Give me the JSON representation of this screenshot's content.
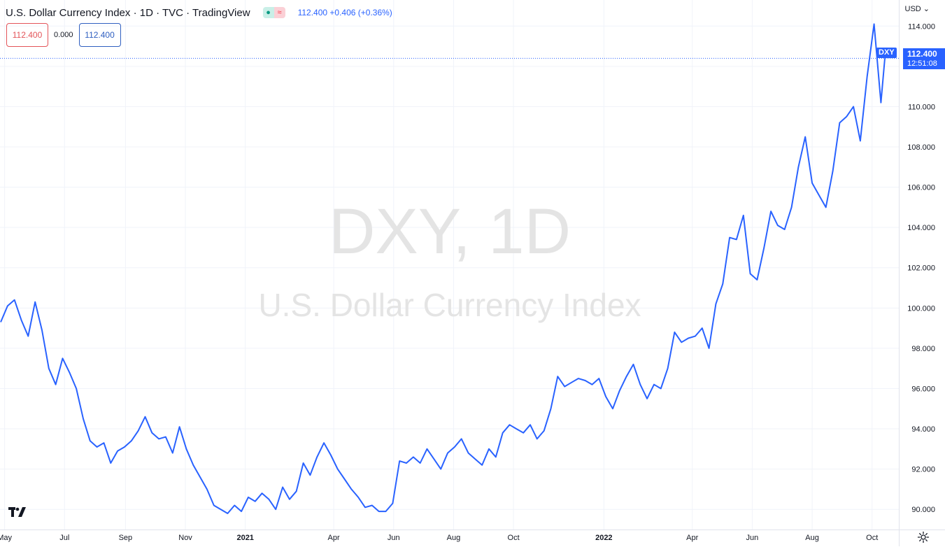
{
  "header": {
    "title": "U.S. Dollar Currency Index · 1D · TVC · TradingView",
    "quote": "112.400 +0.406 (+0.36%)",
    "status_icons": [
      "dot-icon",
      "wave-icon"
    ]
  },
  "legend": {
    "left_value": "112.400",
    "middle_value": "0.000",
    "right_value": "112.400"
  },
  "currency_button": {
    "label": "USD ⌄"
  },
  "last_price": {
    "value": "112.400",
    "countdown": "12:51:08"
  },
  "symbol_badge": "DXY",
  "watermark": {
    "line1": "DXY, 1D",
    "line2": "U.S. Dollar Currency Index"
  },
  "colors": {
    "line": "#2962ff",
    "grid": "#f0f3fa",
    "watermark": "#e4e4e4",
    "accent": "#2962ff"
  },
  "chart_data": {
    "type": "line",
    "title": "U.S. Dollar Currency Index",
    "series": [
      {
        "name": "DXY",
        "x": [
          "2020-04-27",
          "2020-05-04",
          "2020-05-11",
          "2020-05-18",
          "2020-05-25",
          "2020-06-01",
          "2020-06-08",
          "2020-06-15",
          "2020-06-22",
          "2020-06-29",
          "2020-07-06",
          "2020-07-13",
          "2020-07-20",
          "2020-07-27",
          "2020-08-03",
          "2020-08-10",
          "2020-08-17",
          "2020-08-24",
          "2020-08-31",
          "2020-09-07",
          "2020-09-14",
          "2020-09-21",
          "2020-09-28",
          "2020-10-05",
          "2020-10-12",
          "2020-10-19",
          "2020-10-26",
          "2020-11-02",
          "2020-11-09",
          "2020-11-16",
          "2020-11-23",
          "2020-11-30",
          "2020-12-07",
          "2020-12-14",
          "2020-12-21",
          "2020-12-28",
          "2021-01-04",
          "2021-01-11",
          "2021-01-18",
          "2021-01-25",
          "2021-02-01",
          "2021-02-08",
          "2021-02-15",
          "2021-02-22",
          "2021-03-01",
          "2021-03-08",
          "2021-03-15",
          "2021-03-22",
          "2021-03-29",
          "2021-04-05",
          "2021-04-12",
          "2021-04-19",
          "2021-04-26",
          "2021-05-03",
          "2021-05-10",
          "2021-05-17",
          "2021-05-24",
          "2021-05-31",
          "2021-06-07",
          "2021-06-14",
          "2021-06-21",
          "2021-06-28",
          "2021-07-05",
          "2021-07-12",
          "2021-07-19",
          "2021-07-26",
          "2021-08-02",
          "2021-08-09",
          "2021-08-16",
          "2021-08-23",
          "2021-08-30",
          "2021-09-06",
          "2021-09-13",
          "2021-09-20",
          "2021-09-27",
          "2021-10-04",
          "2021-10-11",
          "2021-10-18",
          "2021-10-25",
          "2021-11-01",
          "2021-11-08",
          "2021-11-15",
          "2021-11-22",
          "2021-11-29",
          "2021-12-06",
          "2021-12-13",
          "2021-12-20",
          "2021-12-27",
          "2022-01-03",
          "2022-01-10",
          "2022-01-17",
          "2022-01-24",
          "2022-01-31",
          "2022-02-07",
          "2022-02-14",
          "2022-02-21",
          "2022-02-28",
          "2022-03-07",
          "2022-03-14",
          "2022-03-21",
          "2022-03-28",
          "2022-04-04",
          "2022-04-11",
          "2022-04-18",
          "2022-04-25",
          "2022-05-02",
          "2022-05-09",
          "2022-05-16",
          "2022-05-23",
          "2022-05-30",
          "2022-06-06",
          "2022-06-13",
          "2022-06-20",
          "2022-06-27",
          "2022-07-04",
          "2022-07-11",
          "2022-07-18",
          "2022-07-25",
          "2022-08-01",
          "2022-08-08",
          "2022-08-15",
          "2022-08-22",
          "2022-08-29",
          "2022-09-05",
          "2022-09-12",
          "2022-09-19",
          "2022-09-26",
          "2022-10-03",
          "2022-10-10",
          "2022-10-14"
        ],
        "values": [
          99.3,
          100.1,
          100.4,
          99.4,
          98.6,
          100.3,
          98.9,
          97.0,
          96.2,
          97.5,
          96.8,
          96.0,
          94.5,
          93.4,
          93.1,
          93.3,
          92.3,
          92.9,
          93.1,
          93.4,
          93.9,
          94.6,
          93.8,
          93.5,
          93.6,
          92.8,
          94.1,
          93.0,
          92.2,
          91.6,
          91.0,
          90.2,
          90.0,
          89.8,
          90.2,
          89.9,
          90.6,
          90.4,
          90.8,
          90.5,
          90.0,
          91.1,
          90.5,
          90.9,
          92.3,
          91.7,
          92.6,
          93.3,
          92.7,
          92.0,
          91.5,
          91.0,
          90.6,
          90.1,
          90.2,
          89.9,
          89.9,
          90.3,
          92.4,
          92.3,
          92.6,
          92.3,
          93.0,
          92.5,
          92.0,
          92.8,
          93.1,
          93.5,
          92.8,
          92.5,
          92.2,
          93.0,
          92.6,
          93.8,
          94.2,
          94.0,
          93.8,
          94.2,
          93.5,
          93.9,
          95.0,
          96.6,
          96.1,
          96.3,
          96.5,
          96.4,
          96.2,
          96.5,
          95.6,
          95.0,
          95.9,
          96.6,
          97.2,
          96.2,
          95.5,
          96.2,
          96.0,
          97.0,
          98.8,
          98.3,
          98.5,
          98.6,
          99.0,
          98.0,
          100.2,
          101.2,
          103.5,
          103.4,
          104.6,
          101.7,
          101.4,
          103.0,
          104.8,
          104.1,
          103.9,
          105.0,
          107.0,
          108.5,
          106.2,
          105.6,
          105.0,
          106.8,
          109.2,
          109.5,
          110.0,
          108.3,
          111.5,
          114.1,
          110.2,
          112.4
        ]
      }
    ],
    "xticks": [
      "May",
      "Jul",
      "Sep",
      "Nov",
      "2021",
      "Apr",
      "Jun",
      "Aug",
      "Oct",
      "2022",
      "Apr",
      "Jun",
      "Aug",
      "Oct"
    ],
    "xtick_dates": [
      "2020-05-01",
      "2020-07-01",
      "2020-09-01",
      "2020-11-01",
      "2021-01-01",
      "2021-04-01",
      "2021-06-01",
      "2021-08-01",
      "2021-10-01",
      "2022-01-01",
      "2022-04-01",
      "2022-06-01",
      "2022-08-01",
      "2022-10-01"
    ],
    "yticks": [
      "90.000",
      "92.000",
      "94.000",
      "96.000",
      "98.000",
      "100.000",
      "102.000",
      "104.000",
      "106.000",
      "108.000",
      "110.000",
      "112.000",
      "114.000"
    ],
    "ylim": [
      89.0,
      114.6
    ],
    "y_axis_position": "right",
    "grid": true,
    "last_value": 112.4
  }
}
